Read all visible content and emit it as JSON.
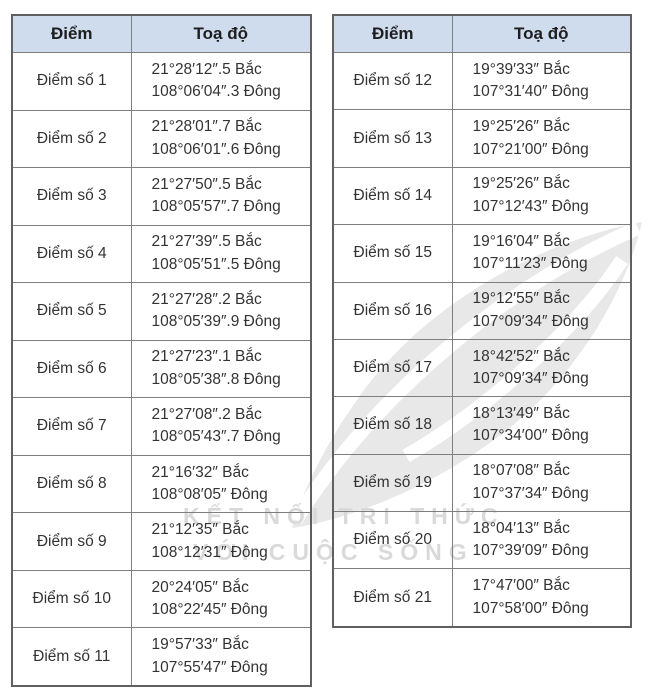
{
  "tables": [
    {
      "id": "left",
      "headers": {
        "point": "Điểm",
        "coord": "Toạ độ"
      },
      "rows": [
        {
          "point": "Điểm số 1",
          "lat": "21°28′12″.5 Bắc",
          "lon": "108°06′04″.3 Đông"
        },
        {
          "point": "Điểm số 2",
          "lat": "21°28′01″.7 Bắc",
          "lon": "108°06′01″.6 Đông"
        },
        {
          "point": "Điểm số 3",
          "lat": "21°27′50″.5 Bắc",
          "lon": "108°05′57″.7 Đông"
        },
        {
          "point": "Điểm số 4",
          "lat": "21°27′39″.5 Bắc",
          "lon": "108°05′51″.5 Đông"
        },
        {
          "point": "Điểm số 5",
          "lat": "21°27′28″.2 Bắc",
          "lon": "108°05′39″.9 Đông"
        },
        {
          "point": "Điểm số 6",
          "lat": "21°27′23″.1 Bắc",
          "lon": "108°05′38″.8 Đông"
        },
        {
          "point": "Điểm số 7",
          "lat": "21°27′08″.2 Bắc",
          "lon": "108°05′43″.7 Đông"
        },
        {
          "point": "Điểm số 8",
          "lat": "21°16′32″ Bắc",
          "lon": "108°08′05″ Đông"
        },
        {
          "point": "Điểm số 9",
          "lat": "21°12′35″ Bắc",
          "lon": "108°12′31″ Đông"
        },
        {
          "point": "Điểm số 10",
          "lat": "20°24′05″ Bắc",
          "lon": "108°22′45″ Đông"
        },
        {
          "point": "Điểm số 11",
          "lat": "19°57′33″ Bắc",
          "lon": "107°55′47″ Đông"
        }
      ]
    },
    {
      "id": "right",
      "headers": {
        "point": "Điểm",
        "coord": "Toạ độ"
      },
      "rows": [
        {
          "point": "Điểm số 12",
          "lat": "19°39′33″ Bắc",
          "lon": "107°31′40″ Đông"
        },
        {
          "point": "Điểm số 13",
          "lat": "19°25′26″ Bắc",
          "lon": "107°21′00″ Đông"
        },
        {
          "point": "Điểm số 14",
          "lat": "19°25′26″ Bắc",
          "lon": "107°12′43″ Đông"
        },
        {
          "point": "Điểm số 15",
          "lat": "19°16′04″ Bắc",
          "lon": "107°11′23″ Đông"
        },
        {
          "point": "Điểm số 16",
          "lat": "19°12′55″ Bắc",
          "lon": "107°09′34″ Đông"
        },
        {
          "point": "Điểm số 17",
          "lat": "18°42′52″ Bắc",
          "lon": "107°09′34″ Đông"
        },
        {
          "point": "Điểm số 18",
          "lat": "18°13′49″ Bắc",
          "lon": "107°34′00″ Đông"
        },
        {
          "point": "Điểm số 19",
          "lat": "18°07′08″ Bắc",
          "lon": "107°37′34″ Đông"
        },
        {
          "point": "Điểm số 20",
          "lat": "18°04′13″ Bắc",
          "lon": "107°39′09″ Đông"
        },
        {
          "point": "Điểm số 21",
          "lat": "17°47′00″ Bắc",
          "lon": "107°58′00″ Đông"
        }
      ]
    }
  ],
  "watermark": {
    "line1": "KẾT NỐI TRI THỨC",
    "line2": "VỚI CUỘC SỐNG",
    "logo": "leaf-logo"
  },
  "colors": {
    "header_bg": "#cfdcee",
    "outer_border": "#606060",
    "inner_border": "#7e7e7e",
    "text": "#333333",
    "watermark": "#d9d9d9",
    "leaf": "#e4e4e4"
  }
}
